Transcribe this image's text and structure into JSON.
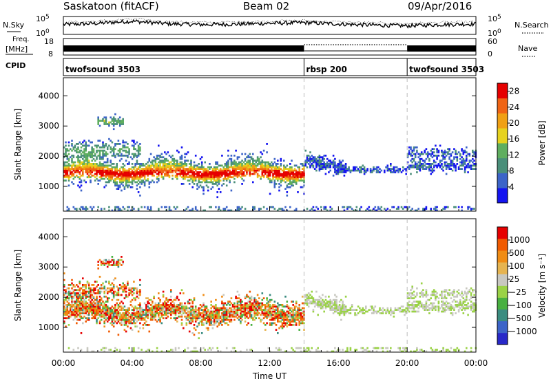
{
  "header": {
    "station": "Saskatoon (fitACF)",
    "beam": "Beam 02",
    "date": "09/Apr/2016"
  },
  "strip_labels": {
    "nsky": "N.Sky",
    "freq_line1": "Freq.",
    "freq_line2": "[MHz]",
    "cpid": "CPID",
    "nsearch": "N.Search",
    "nave": "Nave"
  },
  "colors": {
    "power_scale": [
      "#1414f0",
      "#3c64c8",
      "#4a8f7a",
      "#5fae5f",
      "#e6d21e",
      "#f0a014",
      "#f06414",
      "#e60000"
    ],
    "velocity_scale": [
      "#e60000",
      "#f05a00",
      "#f08c14",
      "#e6b450",
      "#c8c8c0",
      "#9ad246",
      "#48b040",
      "#3a8c80",
      "#3c64c8",
      "#2828c8"
    ]
  },
  "chart_data": [
    {
      "type": "line",
      "name": "sky-noise-strip",
      "yticks": [
        "10^5",
        "10^0"
      ],
      "right_yticks": [
        "10^5",
        "10^0"
      ],
      "x": [
        0,
        2,
        4,
        6,
        8,
        10,
        12,
        14,
        16,
        18,
        20,
        22,
        24
      ],
      "y_level": [
        0.55,
        0.62,
        0.74,
        0.6,
        0.55,
        0.57,
        0.62,
        0.66,
        0.58,
        0.52,
        0.48,
        0.55,
        0.58
      ],
      "xlim": [
        0,
        24
      ]
    },
    {
      "type": "bar",
      "name": "frequency-nave-strip",
      "yticks": [
        "18",
        "8"
      ],
      "right_yticks": [
        "60",
        "0"
      ],
      "segments": [
        {
          "start": 0,
          "end": 14,
          "freq_band": true
        },
        {
          "start": 14,
          "end": 20,
          "freq_band": false
        },
        {
          "start": 20,
          "end": 24,
          "freq_band": true
        }
      ],
      "xlim": [
        0,
        24
      ]
    },
    {
      "type": "table",
      "name": "cpid-strip",
      "segments": [
        {
          "label": "twofsound 3503",
          "start": 0,
          "end": 14
        },
        {
          "label": "rbsp 200",
          "start": 14,
          "end": 20
        },
        {
          "label": "twofsound 3503",
          "start": 20,
          "end": 24
        }
      ]
    },
    {
      "type": "heatmap",
      "name": "power-panel",
      "ylabel": "Slant Range [km]",
      "ylim": [
        180,
        4600
      ],
      "yticks": [
        1000,
        2000,
        3000,
        4000
      ],
      "xlim": [
        0,
        24
      ],
      "colorbar": {
        "label": "Power [dB]",
        "ticks": [
          "4",
          "8",
          "12",
          "16",
          "20",
          "24",
          "28"
        ],
        "range": [
          0,
          30
        ]
      },
      "mode_boundaries": [
        14,
        20
      ]
    },
    {
      "type": "heatmap",
      "name": "velocity-panel",
      "ylabel": "Slant Range [km]",
      "xlabel": "Time UT",
      "ylim": [
        180,
        4600
      ],
      "yticks": [
        1000,
        2000,
        3000,
        4000
      ],
      "xlim": [
        0,
        24
      ],
      "xticks": [
        "00:00",
        "04:00",
        "08:00",
        "12:00",
        "16:00",
        "20:00",
        "00:00"
      ],
      "colorbar": {
        "label": "Velocity [m s⁻¹]",
        "ticks": [
          "1000",
          "500",
          "100",
          "25",
          "−25",
          "−100",
          "−500",
          "−1000"
        ]
      },
      "mode_boundaries": [
        14,
        20
      ]
    }
  ]
}
